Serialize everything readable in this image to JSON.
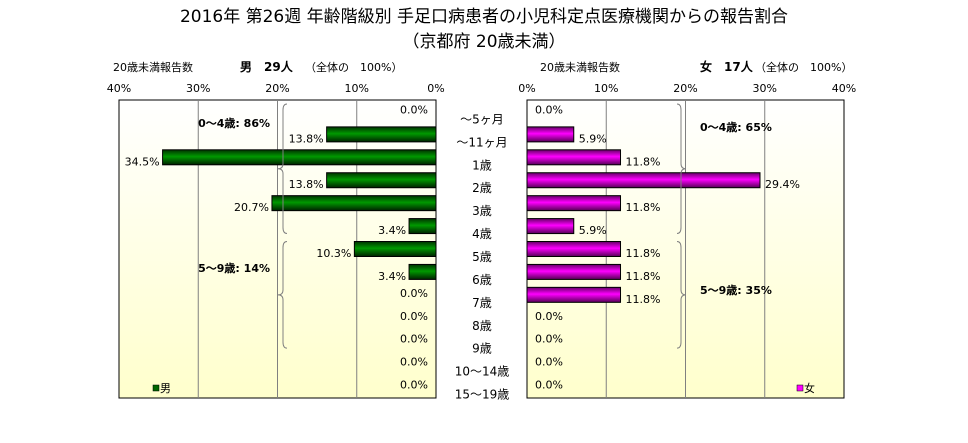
{
  "chart_data": {
    "type": "bar",
    "title": "2016年 第26週 年齢階級別 手足口病患者の小児科定点医療機関からの報告割合",
    "subtitle": "（京都府 20歳未満）",
    "categories": [
      "～5ヶ月",
      "～11ヶ月",
      "1歳",
      "2歳",
      "3歳",
      "4歳",
      "5歳",
      "6歳",
      "7歳",
      "8歳",
      "9歳",
      "10～14歳",
      "15～19歳"
    ],
    "xlim": [
      0,
      40
    ],
    "ticks": [
      "0%",
      "10%",
      "20%",
      "30%",
      "40%"
    ],
    "grid": true,
    "series": [
      {
        "name": "男",
        "color": "#006600",
        "header_prefix": "20歳未満報告数",
        "header_count": "男　29人",
        "header_suffix": "（全体の　100%）",
        "values": [
          0.0,
          13.8,
          34.5,
          13.8,
          20.7,
          3.4,
          10.3,
          3.4,
          0.0,
          0.0,
          0.0,
          0.0,
          0.0
        ],
        "labels": [
          "0.0%",
          "13.8%",
          "34.5%",
          "13.8%",
          "20.7%",
          "3.4%",
          "10.3%",
          "3.4%",
          "0.0%",
          "0.0%",
          "0.0%",
          "0.0%",
          "0.0%"
        ],
        "groups": [
          {
            "label": "0～4歳: 86%"
          },
          {
            "label": "5～9歳: 14%"
          }
        ],
        "legend": "男"
      },
      {
        "name": "女",
        "color": "#ff00ff",
        "header_prefix": "20歳未満報告数",
        "header_count": "女　17人",
        "header_suffix": "（全体の　100%）",
        "values": [
          0.0,
          5.9,
          11.8,
          29.4,
          11.8,
          5.9,
          11.8,
          11.8,
          11.8,
          0.0,
          0.0,
          0.0,
          0.0
        ],
        "labels": [
          "0.0%",
          "5.9%",
          "11.8%",
          "29.4%",
          "11.8%",
          "5.9%",
          "11.8%",
          "11.8%",
          "11.8%",
          "0.0%",
          "0.0%",
          "0.0%",
          "0.0%"
        ],
        "groups": [
          {
            "label": "0～4歳: 65%"
          },
          {
            "label": "5～9歳: 35%"
          }
        ],
        "legend": "女"
      }
    ]
  }
}
